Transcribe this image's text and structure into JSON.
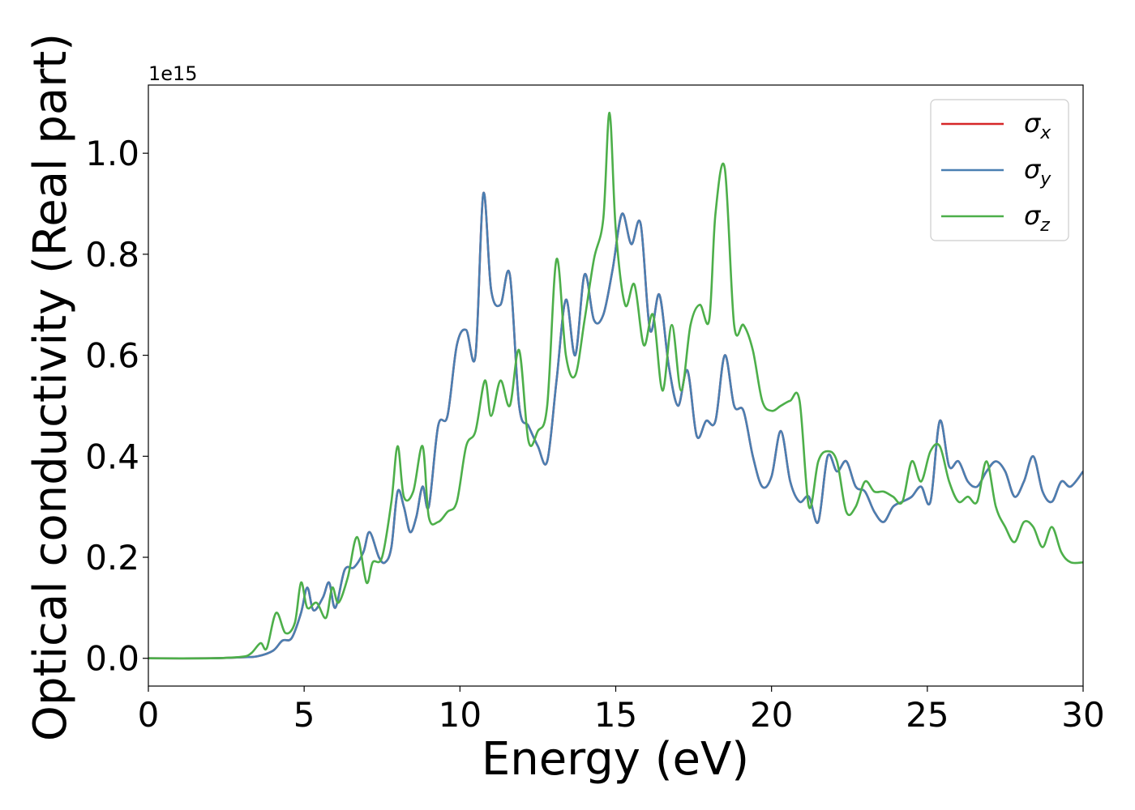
{
  "chart_data": {
    "type": "line",
    "title": "",
    "xlabel": "Energy (eV)",
    "ylabel": "Optical conductivity (Real part)",
    "y_offset_text": "1e15",
    "xlim": [
      0,
      30
    ],
    "ylim": [
      -0.055,
      1.135
    ],
    "xticks": [
      0,
      5,
      10,
      15,
      20,
      25,
      30
    ],
    "xtick_labels": [
      "0",
      "5",
      "10",
      "15",
      "20",
      "25",
      "30"
    ],
    "yticks": [
      0.0,
      0.2,
      0.4,
      0.6,
      0.8,
      1.0
    ],
    "ytick_labels": [
      "0.0",
      "0.2",
      "0.4",
      "0.6",
      "0.8",
      "1.0"
    ],
    "grid": false,
    "legend_position": "top-right",
    "series": [
      {
        "name": "σx",
        "name_base": "σ",
        "name_sub": "x",
        "color": "#d62728",
        "x": [
          0,
          2,
          3,
          3.5,
          4.0,
          4.3,
          4.6,
          4.9,
          5.1,
          5.3,
          5.6,
          5.8,
          6.0,
          6.3,
          6.6,
          6.9,
          7.1,
          7.4,
          7.6,
          7.8,
          8.0,
          8.2,
          8.4,
          8.6,
          8.8,
          9.0,
          9.3,
          9.6,
          9.9,
          10.2,
          10.5,
          10.75,
          11.0,
          11.3,
          11.6,
          11.9,
          12.2,
          12.5,
          12.8,
          13.1,
          13.4,
          13.7,
          14.0,
          14.3,
          14.6,
          14.9,
          15.2,
          15.5,
          15.8,
          16.1,
          16.4,
          16.7,
          17.0,
          17.3,
          17.6,
          17.9,
          18.2,
          18.5,
          18.8,
          19.1,
          19.4,
          19.7,
          20.0,
          20.3,
          20.6,
          20.9,
          21.2,
          21.5,
          21.8,
          22.1,
          22.4,
          22.7,
          23.0,
          23.3,
          23.6,
          23.9,
          24.2,
          24.5,
          24.8,
          25.1,
          25.4,
          25.7,
          26.0,
          26.3,
          26.6,
          26.9,
          27.2,
          27.5,
          27.8,
          28.1,
          28.4,
          28.7,
          29.0,
          29.3,
          29.6,
          30.0
        ],
        "y": [
          0.0,
          0.0,
          0.002,
          0.004,
          0.015,
          0.035,
          0.04,
          0.09,
          0.14,
          0.095,
          0.12,
          0.15,
          0.1,
          0.175,
          0.18,
          0.21,
          0.25,
          0.2,
          0.19,
          0.22,
          0.33,
          0.3,
          0.25,
          0.28,
          0.34,
          0.3,
          0.46,
          0.48,
          0.62,
          0.65,
          0.6,
          0.92,
          0.73,
          0.7,
          0.76,
          0.5,
          0.46,
          0.42,
          0.39,
          0.55,
          0.71,
          0.6,
          0.76,
          0.67,
          0.68,
          0.77,
          0.88,
          0.82,
          0.86,
          0.65,
          0.72,
          0.58,
          0.5,
          0.57,
          0.44,
          0.47,
          0.47,
          0.6,
          0.5,
          0.49,
          0.4,
          0.34,
          0.36,
          0.45,
          0.35,
          0.31,
          0.32,
          0.27,
          0.4,
          0.37,
          0.39,
          0.34,
          0.33,
          0.29,
          0.27,
          0.3,
          0.31,
          0.32,
          0.34,
          0.31,
          0.47,
          0.38,
          0.39,
          0.35,
          0.34,
          0.37,
          0.39,
          0.37,
          0.32,
          0.35,
          0.4,
          0.33,
          0.31,
          0.35,
          0.34,
          0.37
        ]
      },
      {
        "name": "σy",
        "name_base": "σ",
        "name_sub": "y",
        "color": "#4a7fb2",
        "x": [
          0,
          2,
          3,
          3.5,
          4.0,
          4.3,
          4.6,
          4.9,
          5.1,
          5.3,
          5.6,
          5.8,
          6.0,
          6.3,
          6.6,
          6.9,
          7.1,
          7.4,
          7.6,
          7.8,
          8.0,
          8.2,
          8.4,
          8.6,
          8.8,
          9.0,
          9.3,
          9.6,
          9.9,
          10.2,
          10.5,
          10.75,
          11.0,
          11.3,
          11.6,
          11.9,
          12.2,
          12.5,
          12.8,
          13.1,
          13.4,
          13.7,
          14.0,
          14.3,
          14.6,
          14.9,
          15.2,
          15.5,
          15.8,
          16.1,
          16.4,
          16.7,
          17.0,
          17.3,
          17.6,
          17.9,
          18.2,
          18.5,
          18.8,
          19.1,
          19.4,
          19.7,
          20.0,
          20.3,
          20.6,
          20.9,
          21.2,
          21.5,
          21.8,
          22.1,
          22.4,
          22.7,
          23.0,
          23.3,
          23.6,
          23.9,
          24.2,
          24.5,
          24.8,
          25.1,
          25.4,
          25.7,
          26.0,
          26.3,
          26.6,
          26.9,
          27.2,
          27.5,
          27.8,
          28.1,
          28.4,
          28.7,
          29.0,
          29.3,
          29.6,
          30.0
        ],
        "y": [
          0.0,
          0.0,
          0.002,
          0.004,
          0.015,
          0.035,
          0.04,
          0.09,
          0.14,
          0.095,
          0.12,
          0.15,
          0.1,
          0.175,
          0.18,
          0.21,
          0.25,
          0.2,
          0.19,
          0.22,
          0.33,
          0.3,
          0.25,
          0.28,
          0.34,
          0.3,
          0.46,
          0.48,
          0.62,
          0.65,
          0.6,
          0.92,
          0.73,
          0.7,
          0.76,
          0.5,
          0.46,
          0.42,
          0.39,
          0.55,
          0.71,
          0.6,
          0.76,
          0.67,
          0.68,
          0.77,
          0.88,
          0.82,
          0.86,
          0.65,
          0.72,
          0.58,
          0.5,
          0.57,
          0.44,
          0.47,
          0.47,
          0.6,
          0.5,
          0.49,
          0.4,
          0.34,
          0.36,
          0.45,
          0.35,
          0.31,
          0.32,
          0.27,
          0.4,
          0.37,
          0.39,
          0.34,
          0.33,
          0.29,
          0.27,
          0.3,
          0.31,
          0.32,
          0.34,
          0.31,
          0.47,
          0.38,
          0.39,
          0.35,
          0.34,
          0.37,
          0.39,
          0.37,
          0.32,
          0.35,
          0.4,
          0.33,
          0.31,
          0.35,
          0.34,
          0.37
        ]
      },
      {
        "name": "σz",
        "name_base": "σ",
        "name_sub": "z",
        "color": "#4daf4a",
        "x": [
          0,
          2,
          3,
          3.3,
          3.6,
          3.8,
          4.1,
          4.4,
          4.7,
          4.9,
          5.1,
          5.4,
          5.7,
          5.9,
          6.1,
          6.4,
          6.7,
          7.0,
          7.2,
          7.5,
          7.8,
          8.0,
          8.2,
          8.5,
          8.8,
          9.0,
          9.3,
          9.6,
          9.9,
          10.2,
          10.5,
          10.8,
          11.0,
          11.3,
          11.6,
          11.9,
          12.2,
          12.5,
          12.8,
          13.1,
          13.4,
          13.7,
          14.0,
          14.3,
          14.6,
          14.8,
          15.0,
          15.3,
          15.6,
          15.9,
          16.2,
          16.5,
          16.8,
          17.1,
          17.4,
          17.7,
          18.0,
          18.2,
          18.5,
          18.8,
          19.1,
          19.4,
          19.7,
          20.0,
          20.3,
          20.6,
          20.9,
          21.2,
          21.5,
          21.8,
          22.1,
          22.4,
          22.7,
          23.0,
          23.3,
          23.6,
          23.9,
          24.2,
          24.5,
          24.8,
          25.1,
          25.4,
          25.7,
          26.0,
          26.3,
          26.6,
          26.9,
          27.2,
          27.5,
          27.8,
          28.1,
          28.4,
          28.7,
          29.0,
          29.3,
          29.6,
          30.0
        ],
        "y": [
          0.0,
          0.0,
          0.003,
          0.01,
          0.03,
          0.02,
          0.09,
          0.05,
          0.07,
          0.15,
          0.1,
          0.11,
          0.08,
          0.14,
          0.11,
          0.16,
          0.24,
          0.15,
          0.19,
          0.2,
          0.31,
          0.42,
          0.32,
          0.33,
          0.42,
          0.28,
          0.27,
          0.29,
          0.31,
          0.42,
          0.45,
          0.55,
          0.48,
          0.55,
          0.5,
          0.61,
          0.43,
          0.45,
          0.5,
          0.79,
          0.6,
          0.56,
          0.67,
          0.79,
          0.87,
          1.08,
          0.85,
          0.7,
          0.74,
          0.62,
          0.68,
          0.53,
          0.66,
          0.53,
          0.66,
          0.7,
          0.67,
          0.88,
          0.97,
          0.66,
          0.66,
          0.61,
          0.51,
          0.49,
          0.5,
          0.51,
          0.51,
          0.3,
          0.39,
          0.41,
          0.39,
          0.29,
          0.3,
          0.35,
          0.33,
          0.33,
          0.32,
          0.31,
          0.39,
          0.35,
          0.41,
          0.42,
          0.35,
          0.31,
          0.32,
          0.31,
          0.39,
          0.3,
          0.26,
          0.23,
          0.27,
          0.26,
          0.22,
          0.26,
          0.21,
          0.19,
          0.19
        ]
      }
    ]
  }
}
